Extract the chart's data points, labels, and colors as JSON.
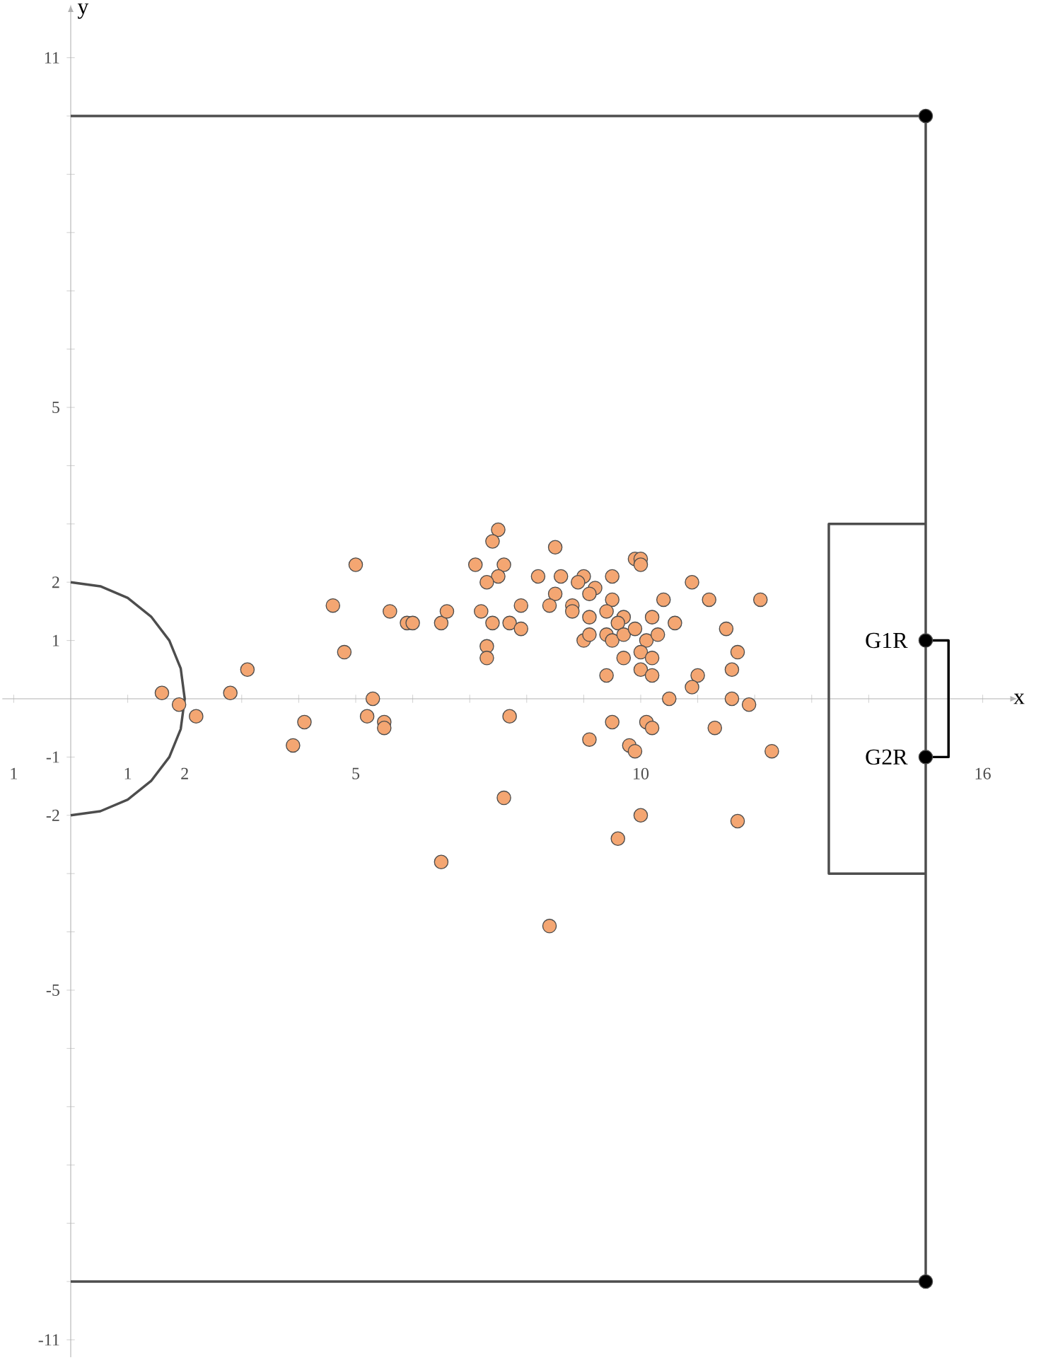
{
  "chart_data": {
    "type": "scatter",
    "xlabel": "x",
    "ylabel": "y",
    "xlim": [
      -1.2,
      16.5
    ],
    "ylim": [
      -11.3,
      11.8
    ],
    "xticks": [
      {
        "value": -1,
        "label": "1"
      },
      {
        "value": 0,
        "label": null
      },
      1,
      2,
      {
        "value": 3,
        "label": null
      },
      {
        "value": 4,
        "label": null
      },
      5,
      {
        "value": 6,
        "label": null
      },
      {
        "value": 7,
        "label": null
      },
      {
        "value": 8,
        "label": null
      },
      {
        "value": 9,
        "label": null
      },
      10,
      {
        "value": 11,
        "label": null
      },
      {
        "value": 12,
        "label": null
      },
      {
        "value": 13,
        "label": null
      },
      {
        "value": 14,
        "label": null
      },
      {
        "value": 15,
        "label": null
      },
      16
    ],
    "yticks": [
      -11,
      {
        "value": -10,
        "label": null
      },
      {
        "value": -9,
        "label": null
      },
      {
        "value": -8,
        "label": null
      },
      {
        "value": -7,
        "label": null
      },
      {
        "value": -6,
        "label": null
      },
      -5,
      {
        "value": -4,
        "label": null
      },
      {
        "value": -3,
        "label": null
      },
      -2,
      -1,
      1,
      2,
      {
        "value": 3,
        "label": null
      },
      {
        "value": 4,
        "label": null
      },
      5,
      {
        "value": 6,
        "label": null
      },
      {
        "value": 7,
        "label": null
      },
      {
        "value": 8,
        "label": null
      },
      {
        "value": 9,
        "label": null
      },
      {
        "value": 10,
        "label": null
      },
      11
    ],
    "series": [
      {
        "type": "line",
        "color": "#4d4d4d",
        "marker": "none",
        "x": [
          0,
          15,
          15,
          0
        ],
        "values": [
          10,
          10,
          -10,
          -10
        ]
      },
      {
        "type": "line",
        "color": "#4d4d4d",
        "marker": "none",
        "x": [
          15,
          13.3,
          13.3,
          15
        ],
        "values": [
          3,
          3,
          -3,
          -3
        ]
      },
      {
        "type": "line",
        "color": "#4d4d4d",
        "marker": "none",
        "x": [
          0,
          0.52,
          1,
          1.41,
          1.73,
          1.93,
          2,
          1.93,
          1.73,
          1.41,
          1,
          0.52,
          0
        ],
        "values": [
          2,
          1.93,
          1.73,
          1.41,
          1,
          0.52,
          0,
          -0.52,
          -1,
          -1.41,
          -1.73,
          -1.93,
          -2
        ]
      },
      {
        "type": "line",
        "color": "#000000",
        "marker": "none",
        "x": [
          15,
          15.4,
          15.4,
          15
        ],
        "values": [
          1,
          1,
          -1,
          -1
        ]
      },
      {
        "type": "scatter",
        "color": "#000000",
        "marker": "circle",
        "x": [
          15,
          15,
          15,
          15
        ],
        "values": [
          10,
          -10,
          1,
          -1
        ]
      },
      {
        "color": "#f4a672",
        "marker": "circle",
        "x": [
          1.6,
          1.9,
          2.2,
          2.8,
          3.1,
          4.1,
          3.9,
          4.6,
          5.0,
          4.8,
          5.3,
          5.2,
          5.5,
          5.5,
          5.6,
          5.9,
          6.0,
          6.5,
          6.6,
          6.5,
          7.5,
          7.4,
          7.1,
          7.6,
          7.5,
          7.3,
          8.5,
          8.2,
          8.6,
          9.0,
          8.9,
          9.2,
          9.1,
          9.5,
          9.9,
          10.0,
          10.0,
          8.5,
          8.4,
          8.8,
          8.8,
          9.5,
          9.4,
          9.1,
          9.7,
          9.6,
          10.2,
          10.4,
          10.6,
          10.9,
          11.2,
          12.1,
          7.2,
          7.4,
          7.7,
          7.9,
          7.9,
          7.3,
          7.3,
          9.0,
          9.1,
          9.4,
          9.5,
          9.7,
          9.9,
          10.1,
          10.3,
          10.0,
          10.2,
          9.7,
          10.0,
          10.2,
          9.4,
          11.0,
          10.9,
          11.5,
          11.7,
          11.6,
          11.6,
          11.9,
          10.5,
          11.3,
          12.3,
          7.7,
          9.1,
          9.5,
          10.1,
          10.2,
          9.8,
          9.9,
          7.6,
          10.0,
          9.6,
          11.7,
          8.4
        ],
        "values": [
          0.1,
          -0.1,
          -0.3,
          0.1,
          0.5,
          -0.4,
          -0.8,
          1.6,
          2.3,
          0.8,
          0.0,
          -0.3,
          -0.4,
          -0.5,
          1.5,
          1.3,
          1.3,
          1.3,
          1.5,
          -2.8,
          2.9,
          2.7,
          2.3,
          2.3,
          2.1,
          2.0,
          2.6,
          2.1,
          2.1,
          2.1,
          2.0,
          1.9,
          1.8,
          2.1,
          2.4,
          2.4,
          2.3,
          1.8,
          1.6,
          1.6,
          1.5,
          1.7,
          1.5,
          1.4,
          1.4,
          1.3,
          1.4,
          1.7,
          1.3,
          2.0,
          1.7,
          1.7,
          1.5,
          1.3,
          1.3,
          1.6,
          1.2,
          0.9,
          0.7,
          1.0,
          1.1,
          1.1,
          1.0,
          1.1,
          1.2,
          1.0,
          1.1,
          0.8,
          0.7,
          0.7,
          0.5,
          0.4,
          0.4,
          0.4,
          0.2,
          1.2,
          0.8,
          0.5,
          0.0,
          -0.1,
          0.0,
          -0.5,
          -0.9,
          -0.3,
          -0.7,
          -0.4,
          -0.4,
          -0.5,
          -0.8,
          -0.9,
          -1.7,
          -2.0,
          -2.4,
          -2.1,
          -3.9
        ]
      }
    ],
    "annotations": [
      {
        "text": "G1R",
        "x": 15,
        "y": 1
      },
      {
        "text": "G2R",
        "x": 15,
        "y": -1
      }
    ]
  }
}
